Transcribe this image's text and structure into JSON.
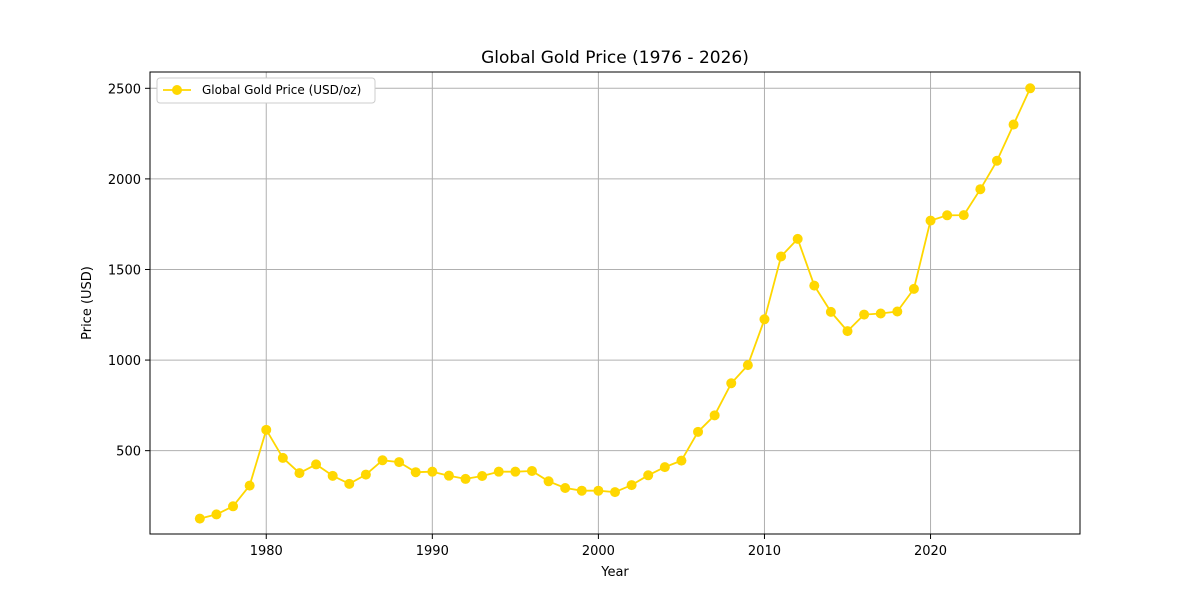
{
  "chart_data": {
    "type": "line",
    "title": "Global Gold Price (1976 - 2026)",
    "xlabel": "Year",
    "ylabel": "Price (USD)",
    "xlim": [
      1973,
      2029
    ],
    "ylim": [
      40,
      2590
    ],
    "xticks": [
      1980,
      1990,
      2000,
      2010,
      2020
    ],
    "yticks": [
      500,
      1000,
      1500,
      2000,
      2500
    ],
    "grid": true,
    "legend_position": "top-left",
    "series": [
      {
        "name": "Global Gold Price (USD/oz)",
        "color": "#FFD700",
        "marker": "circle",
        "x": [
          1976,
          1977,
          1978,
          1979,
          1980,
          1981,
          1982,
          1983,
          1984,
          1985,
          1986,
          1987,
          1988,
          1989,
          1990,
          1991,
          1992,
          1993,
          1994,
          1995,
          1996,
          1997,
          1998,
          1999,
          2000,
          2001,
          2002,
          2003,
          2004,
          2005,
          2006,
          2007,
          2008,
          2009,
          2010,
          2011,
          2012,
          2013,
          2014,
          2015,
          2016,
          2017,
          2018,
          2019,
          2020,
          2021,
          2022,
          2023,
          2024,
          2025,
          2026
        ],
        "y": [
          125,
          148,
          193,
          307,
          615,
          460,
          376,
          424,
          361,
          317,
          368,
          447,
          437,
          381,
          384,
          362,
          344,
          360,
          384,
          384,
          388,
          331,
          294,
          279,
          279,
          271,
          310,
          364,
          409,
          445,
          604,
          695,
          872,
          972,
          1225,
          1572,
          1669,
          1411,
          1266,
          1160,
          1251,
          1257,
          1268,
          1393,
          1770,
          1799,
          1800,
          1943,
          2100,
          2300,
          2500
        ]
      }
    ]
  }
}
